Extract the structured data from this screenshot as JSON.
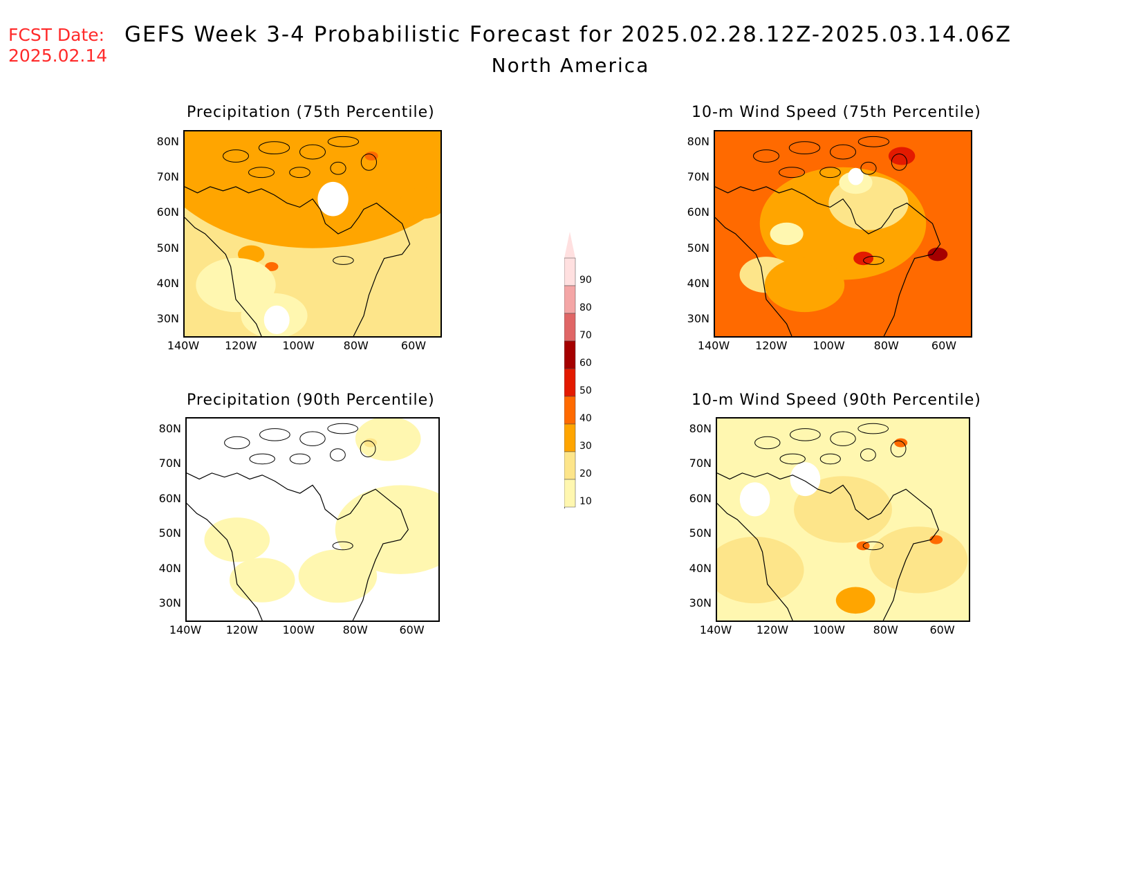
{
  "header": {
    "fcst_label": "FCST Date:",
    "fcst_date": "2025.02.14",
    "title": "GEFS Week 3-4 Probabilistic Forecast for 2025.02.28.12Z-2025.03.14.06Z",
    "subtitle": "North America"
  },
  "panels": [
    {
      "id": "precip75",
      "title": "Precipitation (75th Percentile)"
    },
    {
      "id": "wind75",
      "title": "10-m Wind Speed (75th Percentile)"
    },
    {
      "id": "precip90",
      "title": "Precipitation (90th Percentile)"
    },
    {
      "id": "wind90",
      "title": "10-m Wind Speed (90th Percentile)"
    }
  ],
  "axes": {
    "lat_labels": [
      "80N",
      "70N",
      "60N",
      "50N",
      "40N",
      "30N"
    ],
    "lon_labels": [
      "140W",
      "120W",
      "100W",
      "80W",
      "60W"
    ]
  },
  "colorbar": {
    "levels": [
      "10",
      "20",
      "30",
      "40",
      "50",
      "60",
      "70",
      "80",
      "90"
    ],
    "colors": [
      "#fff7b0",
      "#fde58a",
      "#ffa500",
      "#ff6a00",
      "#e31a00",
      "#a50000",
      "#e06666",
      "#f4a6a6",
      "#ffe0e0"
    ]
  }
}
